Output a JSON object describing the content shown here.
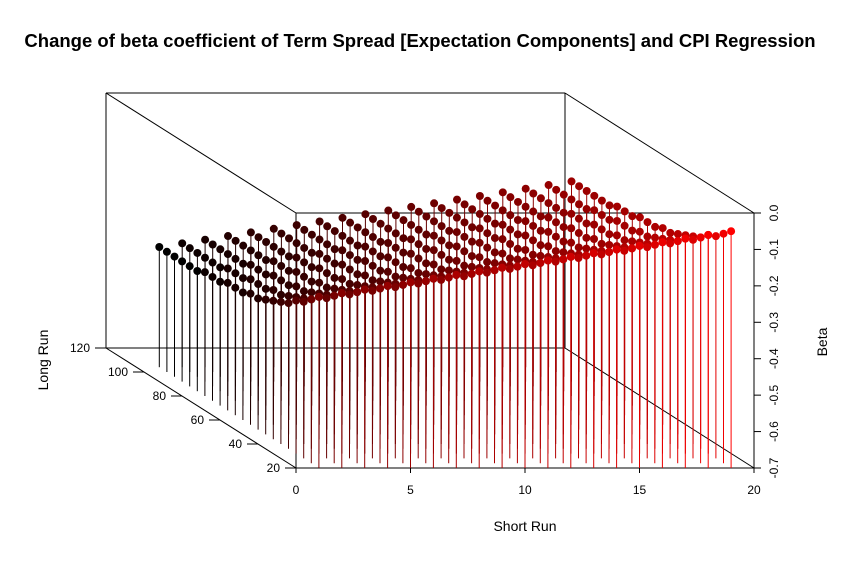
{
  "chart_data": {
    "type": "scatter",
    "subtype": "3d-scatter-with-drop-lines",
    "title": "Change of beta coefficient of Term Spread [Expectation Components] and CPI Regression",
    "xlabel": "Short Run",
    "ylabel": "Long Run",
    "zlabel": "Beta",
    "x_ticks": [
      "0",
      "5",
      "10",
      "15",
      "20"
    ],
    "y_ticks": [
      "20",
      "40",
      "60",
      "80",
      "100",
      "120"
    ],
    "z_ticks": [
      "-0.7",
      "-0.6",
      "-0.5",
      "-0.4",
      "-0.3",
      "-0.2",
      "-0.1",
      "0.0"
    ],
    "xlim": [
      0,
      20
    ],
    "ylim": [
      20,
      120
    ],
    "zlim": [
      -0.7,
      0.0
    ],
    "color_low": "#000000",
    "color_high": "#ff0000",
    "series": [
      {
        "short_run": 1,
        "long_run": [
          104,
          100,
          96,
          92,
          88,
          84,
          80,
          76,
          72,
          68,
          64,
          60,
          56,
          52,
          48,
          44,
          40,
          36,
          32,
          28,
          24,
          20
        ],
        "beta": [
          -0.37,
          -0.37,
          -0.37,
          -0.37,
          -0.37,
          -0.37,
          -0.36,
          -0.36,
          -0.36,
          -0.35,
          -0.35,
          -0.35,
          -0.34,
          -0.34,
          -0.33,
          -0.32,
          -0.31,
          -0.3,
          -0.28,
          -0.27,
          -0.25,
          -0.23
        ]
      },
      {
        "short_run": 2,
        "long_run": [
          104,
          100,
          96,
          92,
          88,
          84,
          80,
          76,
          72,
          68,
          64,
          60,
          56,
          52,
          48,
          44,
          40,
          36,
          32,
          28,
          24,
          20
        ],
        "beta": [
          -0.36,
          -0.36,
          -0.36,
          -0.36,
          -0.36,
          -0.36,
          -0.35,
          -0.35,
          -0.35,
          -0.34,
          -0.34,
          -0.34,
          -0.33,
          -0.33,
          -0.32,
          -0.31,
          -0.3,
          -0.29,
          -0.27,
          -0.26,
          -0.24,
          -0.22
        ]
      },
      {
        "short_run": 3,
        "long_run": [
          104,
          100,
          96,
          92,
          88,
          84,
          80,
          76,
          72,
          68,
          64,
          60,
          56,
          52,
          48,
          44,
          40,
          36,
          32,
          28,
          24,
          20
        ],
        "beta": [
          -0.35,
          -0.35,
          -0.35,
          -0.35,
          -0.35,
          -0.35,
          -0.34,
          -0.34,
          -0.34,
          -0.33,
          -0.33,
          -0.33,
          -0.32,
          -0.32,
          -0.31,
          -0.3,
          -0.29,
          -0.28,
          -0.26,
          -0.25,
          -0.23,
          -0.21
        ]
      },
      {
        "short_run": 4,
        "long_run": [
          104,
          100,
          96,
          92,
          88,
          84,
          80,
          76,
          72,
          68,
          64,
          60,
          56,
          52,
          48,
          44,
          40,
          36,
          32,
          28,
          24,
          20
        ],
        "beta": [
          -0.34,
          -0.34,
          -0.34,
          -0.34,
          -0.34,
          -0.34,
          -0.33,
          -0.33,
          -0.33,
          -0.32,
          -0.32,
          -0.32,
          -0.31,
          -0.31,
          -0.3,
          -0.29,
          -0.28,
          -0.27,
          -0.25,
          -0.24,
          -0.22,
          -0.2
        ]
      },
      {
        "short_run": 5,
        "long_run": [
          104,
          100,
          96,
          92,
          88,
          84,
          80,
          76,
          72,
          68,
          64,
          60,
          56,
          52,
          48,
          44,
          40,
          36,
          32,
          28,
          24,
          20
        ],
        "beta": [
          -0.33,
          -0.33,
          -0.33,
          -0.33,
          -0.33,
          -0.33,
          -0.32,
          -0.32,
          -0.32,
          -0.31,
          -0.31,
          -0.31,
          -0.3,
          -0.3,
          -0.29,
          -0.28,
          -0.27,
          -0.26,
          -0.24,
          -0.23,
          -0.21,
          -0.19
        ]
      },
      {
        "short_run": 6,
        "long_run": [
          104,
          100,
          96,
          92,
          88,
          84,
          80,
          76,
          72,
          68,
          64,
          60,
          56,
          52,
          48,
          44,
          40,
          36,
          32,
          28,
          24,
          20
        ],
        "beta": [
          -0.32,
          -0.32,
          -0.32,
          -0.32,
          -0.32,
          -0.32,
          -0.31,
          -0.31,
          -0.31,
          -0.3,
          -0.3,
          -0.3,
          -0.29,
          -0.29,
          -0.28,
          -0.27,
          -0.26,
          -0.25,
          -0.23,
          -0.22,
          -0.2,
          -0.18
        ]
      },
      {
        "short_run": 7,
        "long_run": [
          104,
          100,
          96,
          92,
          88,
          84,
          80,
          76,
          72,
          68,
          64,
          60,
          56,
          52,
          48,
          44,
          40,
          36,
          32,
          28,
          24,
          20
        ],
        "beta": [
          -0.31,
          -0.31,
          -0.31,
          -0.31,
          -0.31,
          -0.31,
          -0.3,
          -0.3,
          -0.3,
          -0.29,
          -0.29,
          -0.29,
          -0.28,
          -0.28,
          -0.27,
          -0.26,
          -0.25,
          -0.24,
          -0.22,
          -0.21,
          -0.19,
          -0.17
        ]
      },
      {
        "short_run": 8,
        "long_run": [
          104,
          100,
          96,
          92,
          88,
          84,
          80,
          76,
          72,
          68,
          64,
          60,
          56,
          52,
          48,
          44,
          40,
          36,
          32,
          28,
          24,
          20
        ],
        "beta": [
          -0.3,
          -0.3,
          -0.3,
          -0.3,
          -0.3,
          -0.3,
          -0.29,
          -0.29,
          -0.29,
          -0.28,
          -0.28,
          -0.28,
          -0.27,
          -0.27,
          -0.26,
          -0.25,
          -0.24,
          -0.23,
          -0.21,
          -0.2,
          -0.18,
          -0.16
        ]
      },
      {
        "short_run": 9,
        "long_run": [
          104,
          100,
          96,
          92,
          88,
          84,
          80,
          76,
          72,
          68,
          64,
          60,
          56,
          52,
          48,
          44,
          40,
          36,
          32,
          28,
          24,
          20
        ],
        "beta": [
          -0.29,
          -0.29,
          -0.29,
          -0.29,
          -0.29,
          -0.29,
          -0.28,
          -0.28,
          -0.28,
          -0.27,
          -0.27,
          -0.27,
          -0.26,
          -0.26,
          -0.25,
          -0.24,
          -0.23,
          -0.22,
          -0.2,
          -0.19,
          -0.17,
          -0.15
        ]
      },
      {
        "short_run": 10,
        "long_run": [
          104,
          100,
          96,
          92,
          88,
          84,
          80,
          76,
          72,
          68,
          64,
          60,
          56,
          52,
          48,
          44,
          40,
          36,
          32,
          28,
          24,
          20
        ],
        "beta": [
          -0.28,
          -0.28,
          -0.28,
          -0.28,
          -0.28,
          -0.28,
          -0.27,
          -0.27,
          -0.27,
          -0.26,
          -0.26,
          -0.26,
          -0.25,
          -0.25,
          -0.24,
          -0.23,
          -0.22,
          -0.21,
          -0.19,
          -0.18,
          -0.16,
          -0.14
        ]
      },
      {
        "short_run": 11,
        "long_run": [
          104,
          100,
          96,
          92,
          88,
          84,
          80,
          76,
          72,
          68,
          64,
          60,
          56,
          52,
          48,
          44,
          40,
          36,
          32,
          28,
          24,
          20
        ],
        "beta": [
          -0.27,
          -0.27,
          -0.27,
          -0.27,
          -0.27,
          -0.27,
          -0.26,
          -0.26,
          -0.26,
          -0.25,
          -0.25,
          -0.25,
          -0.24,
          -0.24,
          -0.23,
          -0.22,
          -0.21,
          -0.2,
          -0.18,
          -0.17,
          -0.15,
          -0.13
        ]
      },
      {
        "short_run": 12,
        "long_run": [
          104,
          100,
          96,
          92,
          88,
          84,
          80,
          76,
          72,
          68,
          64,
          60,
          56,
          52,
          48,
          44,
          40,
          36,
          32,
          28,
          24,
          20
        ],
        "beta": [
          -0.26,
          -0.26,
          -0.26,
          -0.26,
          -0.26,
          -0.26,
          -0.25,
          -0.25,
          -0.25,
          -0.24,
          -0.24,
          -0.24,
          -0.23,
          -0.23,
          -0.22,
          -0.21,
          -0.2,
          -0.19,
          -0.17,
          -0.16,
          -0.14,
          -0.12
        ]
      },
      {
        "short_run": 13,
        "long_run": [
          104,
          100,
          96,
          92,
          88,
          84,
          80,
          76,
          72,
          68,
          64,
          60,
          56,
          52,
          48,
          44,
          40,
          36,
          32,
          28,
          24,
          20
        ],
        "beta": [
          -0.25,
          -0.25,
          -0.25,
          -0.25,
          -0.25,
          -0.25,
          -0.24,
          -0.24,
          -0.24,
          -0.23,
          -0.23,
          -0.23,
          -0.22,
          -0.22,
          -0.21,
          -0.2,
          -0.19,
          -0.18,
          -0.16,
          -0.15,
          -0.13,
          -0.11
        ]
      },
      {
        "short_run": 14,
        "long_run": [
          104,
          100,
          96,
          92,
          88,
          84,
          80,
          76,
          72,
          68,
          64,
          60,
          56,
          52,
          48,
          44,
          40,
          36,
          32,
          28,
          24,
          20
        ],
        "beta": [
          -0.24,
          -0.24,
          -0.24,
          -0.24,
          -0.24,
          -0.24,
          -0.23,
          -0.23,
          -0.23,
          -0.22,
          -0.22,
          -0.22,
          -0.21,
          -0.21,
          -0.2,
          -0.19,
          -0.18,
          -0.17,
          -0.15,
          -0.14,
          -0.12,
          -0.1
        ]
      },
      {
        "short_run": 15,
        "long_run": [
          104,
          100,
          96,
          92,
          88,
          84,
          80,
          76,
          72,
          68,
          64,
          60,
          56,
          52,
          48,
          44,
          40,
          36,
          32,
          28,
          24,
          20
        ],
        "beta": [
          -0.23,
          -0.23,
          -0.23,
          -0.23,
          -0.23,
          -0.23,
          -0.22,
          -0.22,
          -0.22,
          -0.21,
          -0.21,
          -0.21,
          -0.2,
          -0.2,
          -0.19,
          -0.18,
          -0.17,
          -0.16,
          -0.14,
          -0.13,
          -0.11,
          -0.09
        ]
      },
      {
        "short_run": 16,
        "long_run": [
          104,
          100,
          96,
          92,
          88,
          84,
          80,
          76,
          72,
          68,
          64,
          60,
          56,
          52,
          48,
          44,
          40,
          36,
          32,
          28,
          24,
          20
        ],
        "beta": [
          -0.22,
          -0.22,
          -0.22,
          -0.22,
          -0.22,
          -0.22,
          -0.21,
          -0.21,
          -0.21,
          -0.2,
          -0.2,
          -0.2,
          -0.19,
          -0.19,
          -0.18,
          -0.17,
          -0.16,
          -0.15,
          -0.13,
          -0.12,
          -0.1,
          -0.08
        ]
      },
      {
        "short_run": 17,
        "long_run": [
          104,
          100,
          96,
          92,
          88,
          84,
          80,
          76,
          72,
          68,
          64,
          60,
          56,
          52,
          48,
          44,
          40,
          36,
          32,
          28,
          24,
          20
        ],
        "beta": [
          -0.21,
          -0.21,
          -0.21,
          -0.21,
          -0.21,
          -0.21,
          -0.2,
          -0.2,
          -0.2,
          -0.19,
          -0.19,
          -0.19,
          -0.18,
          -0.18,
          -0.17,
          -0.16,
          -0.15,
          -0.14,
          -0.12,
          -0.11,
          -0.09,
          -0.07
        ]
      },
      {
        "short_run": 18,
        "long_run": [
          104,
          100,
          96,
          92,
          88,
          84,
          80,
          76,
          72,
          68,
          64,
          60,
          56,
          52,
          48,
          44,
          40,
          36,
          32,
          28,
          24,
          20
        ],
        "beta": [
          -0.2,
          -0.2,
          -0.2,
          -0.2,
          -0.2,
          -0.2,
          -0.19,
          -0.19,
          -0.19,
          -0.18,
          -0.18,
          -0.18,
          -0.17,
          -0.17,
          -0.16,
          -0.15,
          -0.14,
          -0.13,
          -0.11,
          -0.1,
          -0.08,
          -0.06
        ]
      },
      {
        "short_run": 19,
        "long_run": [
          104,
          100,
          96,
          92,
          88,
          84,
          80,
          76,
          72,
          68,
          64,
          60,
          56,
          52,
          48,
          44,
          40,
          36,
          32,
          28,
          24,
          20
        ],
        "beta": [
          -0.19,
          -0.19,
          -0.19,
          -0.19,
          -0.19,
          -0.19,
          -0.18,
          -0.18,
          -0.18,
          -0.17,
          -0.17,
          -0.17,
          -0.16,
          -0.16,
          -0.15,
          -0.14,
          -0.13,
          -0.12,
          -0.1,
          -0.09,
          -0.07,
          -0.05
        ]
      }
    ]
  }
}
